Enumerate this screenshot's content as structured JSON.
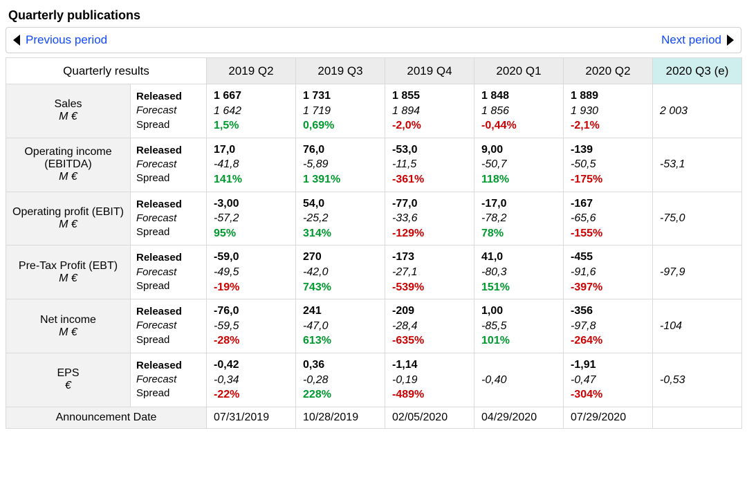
{
  "title": "Quarterly publications",
  "nav": {
    "prev": "Previous period",
    "next": "Next period"
  },
  "colors": {
    "header_bg": "#ececec",
    "highlight_bg": "#cfeeee",
    "row_bg": "#f2f2f2",
    "border": "#d9d9d9",
    "link": "#1048ff",
    "pos": "#009a2e",
    "neg": "#cc0000"
  },
  "fonts": {
    "base_pt": 15,
    "title_pt": 18,
    "header_pt": 17
  },
  "header": {
    "rowhead": "Quarterly results",
    "periods": [
      "2019 Q2",
      "2019 Q3",
      "2019 Q4",
      "2020 Q1",
      "2020 Q2",
      "2020 Q3 (e)"
    ],
    "highlight_index": 5
  },
  "sub_labels": {
    "released": "Released",
    "forecast": "Forecast",
    "spread": "Spread"
  },
  "metrics": [
    {
      "name": "Sales",
      "unit": "M €",
      "cells": [
        {
          "released": "1 667",
          "forecast": "1 642",
          "spread": "1,5%",
          "dir": "pos"
        },
        {
          "released": "1 731",
          "forecast": "1 719",
          "spread": "0,69%",
          "dir": "pos"
        },
        {
          "released": "1 855",
          "forecast": "1 894",
          "spread": "-2,0%",
          "dir": "neg"
        },
        {
          "released": "1 848",
          "forecast": "1 856",
          "spread": "-0,44%",
          "dir": "neg"
        },
        {
          "released": "1 889",
          "forecast": "1 930",
          "spread": "-2,1%",
          "dir": "neg"
        },
        {
          "released": "",
          "forecast": "2 003",
          "spread": "",
          "dir": ""
        }
      ]
    },
    {
      "name": "Operating income (EBITDA)",
      "unit": "M €",
      "cells": [
        {
          "released": "17,0",
          "forecast": "-41,8",
          "spread": "141%",
          "dir": "pos"
        },
        {
          "released": "76,0",
          "forecast": "-5,89",
          "spread": "1 391%",
          "dir": "pos"
        },
        {
          "released": "-53,0",
          "forecast": "-11,5",
          "spread": "-361%",
          "dir": "neg"
        },
        {
          "released": "9,00",
          "forecast": "-50,7",
          "spread": "118%",
          "dir": "pos"
        },
        {
          "released": "-139",
          "forecast": "-50,5",
          "spread": "-175%",
          "dir": "neg"
        },
        {
          "released": "",
          "forecast": "-53,1",
          "spread": "",
          "dir": ""
        }
      ]
    },
    {
      "name": "Operating profit (EBIT)",
      "unit": "M €",
      "cells": [
        {
          "released": "-3,00",
          "forecast": "-57,2",
          "spread": "95%",
          "dir": "pos"
        },
        {
          "released": "54,0",
          "forecast": "-25,2",
          "spread": "314%",
          "dir": "pos"
        },
        {
          "released": "-77,0",
          "forecast": "-33,6",
          "spread": "-129%",
          "dir": "neg"
        },
        {
          "released": "-17,0",
          "forecast": "-78,2",
          "spread": "78%",
          "dir": "pos"
        },
        {
          "released": "-167",
          "forecast": "-65,6",
          "spread": "-155%",
          "dir": "neg"
        },
        {
          "released": "",
          "forecast": "-75,0",
          "spread": "",
          "dir": ""
        }
      ]
    },
    {
      "name": "Pre-Tax Profit (EBT)",
      "unit": "M €",
      "cells": [
        {
          "released": "-59,0",
          "forecast": "-49,5",
          "spread": "-19%",
          "dir": "neg"
        },
        {
          "released": "270",
          "forecast": "-42,0",
          "spread": "743%",
          "dir": "pos"
        },
        {
          "released": "-173",
          "forecast": "-27,1",
          "spread": "-539%",
          "dir": "neg"
        },
        {
          "released": "41,0",
          "forecast": "-80,3",
          "spread": "151%",
          "dir": "pos"
        },
        {
          "released": "-455",
          "forecast": "-91,6",
          "spread": "-397%",
          "dir": "neg"
        },
        {
          "released": "",
          "forecast": "-97,9",
          "spread": "",
          "dir": ""
        }
      ]
    },
    {
      "name": "Net income",
      "unit": "M €",
      "cells": [
        {
          "released": "-76,0",
          "forecast": "-59,5",
          "spread": "-28%",
          "dir": "neg"
        },
        {
          "released": "241",
          "forecast": "-47,0",
          "spread": "613%",
          "dir": "pos"
        },
        {
          "released": "-209",
          "forecast": "-28,4",
          "spread": "-635%",
          "dir": "neg"
        },
        {
          "released": "1,00",
          "forecast": "-85,5",
          "spread": "101%",
          "dir": "pos"
        },
        {
          "released": "-356",
          "forecast": "-97,8",
          "spread": "-264%",
          "dir": "neg"
        },
        {
          "released": "",
          "forecast": "-104",
          "spread": "",
          "dir": ""
        }
      ]
    },
    {
      "name": "EPS",
      "unit": "€",
      "cells": [
        {
          "released": "-0,42",
          "forecast": "-0,34",
          "spread": "-22%",
          "dir": "neg"
        },
        {
          "released": "0,36",
          "forecast": "-0,28",
          "spread": "228%",
          "dir": "pos"
        },
        {
          "released": "-1,14",
          "forecast": "-0,19",
          "spread": "-489%",
          "dir": "neg"
        },
        {
          "released": "",
          "forecast": "-0,40",
          "spread": "",
          "dir": ""
        },
        {
          "released": "-1,91",
          "forecast": "-0,47",
          "spread": "-304%",
          "dir": "neg"
        },
        {
          "released": "",
          "forecast": "-0,53",
          "spread": "",
          "dir": ""
        }
      ]
    }
  ],
  "announcement": {
    "label": "Announcement Date",
    "dates": [
      "07/31/2019",
      "10/28/2019",
      "02/05/2020",
      "04/29/2020",
      "07/29/2020",
      ""
    ]
  }
}
